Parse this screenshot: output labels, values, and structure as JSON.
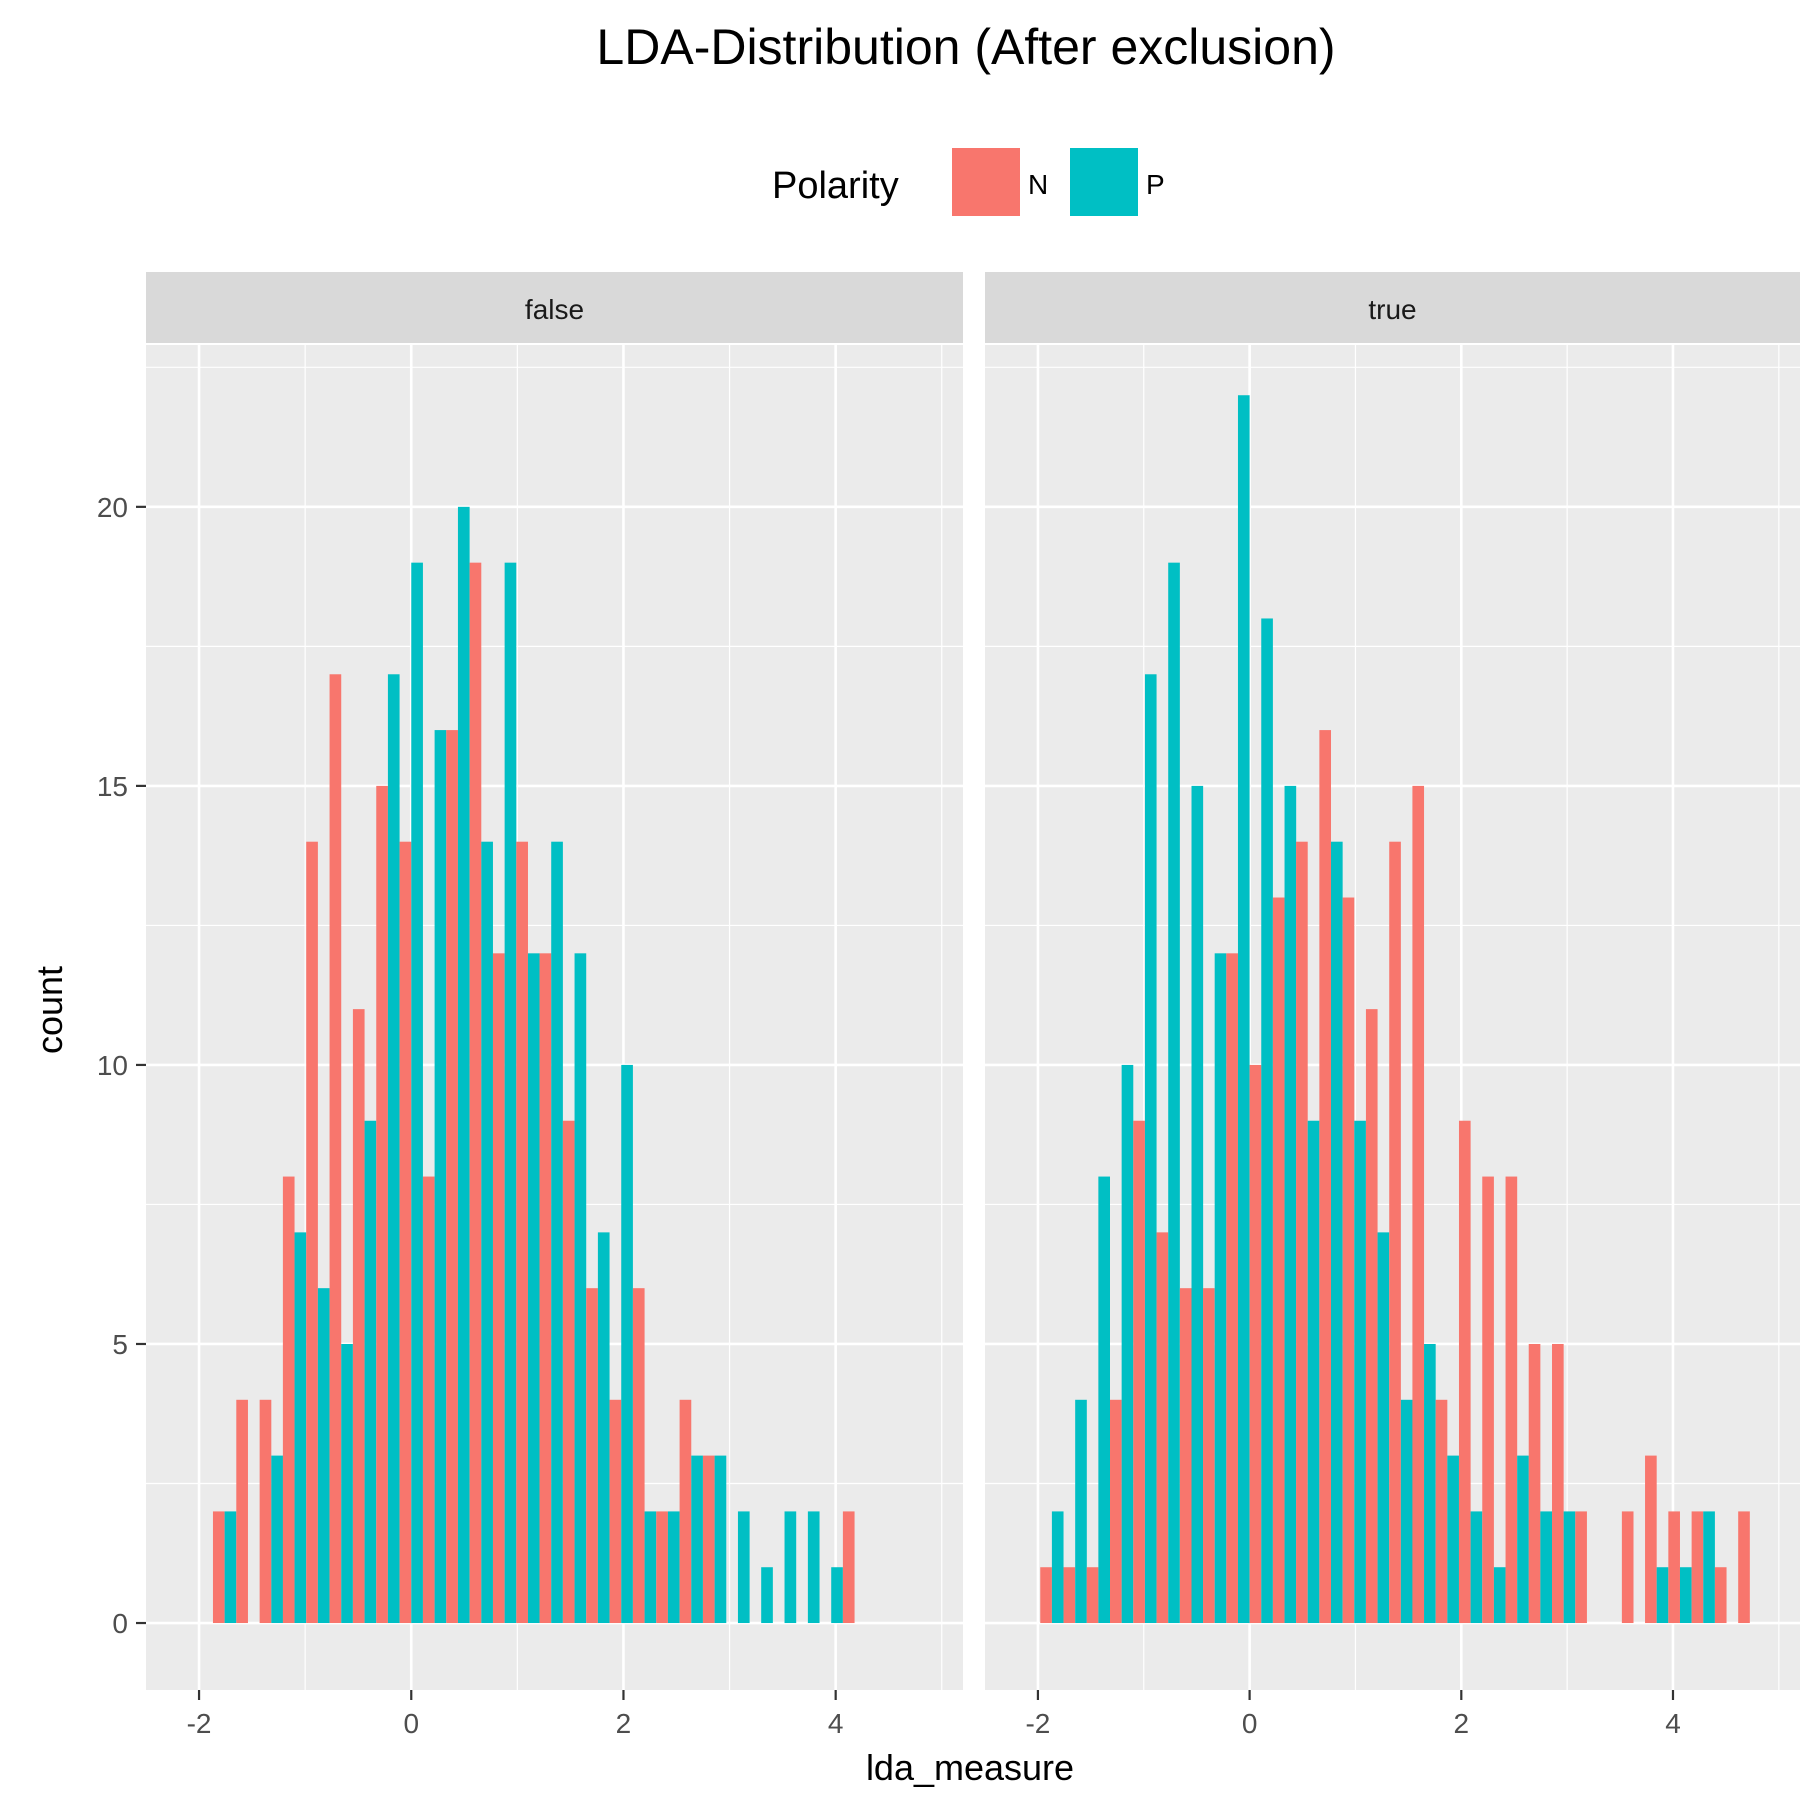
{
  "chart_data": {
    "type": "bar",
    "title": "LDA-Distribution (After exclusion)",
    "xlabel": "lda_measure",
    "ylabel": "count",
    "xlim": [
      -2.5,
      5.2
    ],
    "ylim": [
      -1.2,
      22.9
    ],
    "x_ticks": [
      -2,
      0,
      2,
      4
    ],
    "x_tick_labels": [
      "-2",
      "0",
      "2",
      "4"
    ],
    "y_ticks": [
      0,
      5,
      10,
      15,
      20
    ],
    "y_tick_labels": [
      "0",
      "5",
      "10",
      "15",
      "20"
    ],
    "grid": true,
    "legend": {
      "title": "Polarity",
      "position": "top",
      "entries": [
        {
          "label": "N",
          "color": "#F8766D"
        },
        {
          "label": "P",
          "color": "#00BFC4"
        }
      ]
    },
    "bin_width": 0.2199,
    "colors": {
      "N": "#F8766D",
      "P": "#00BFC4"
    },
    "panels": [
      {
        "label": "false",
        "bin_centers": [
          -1.759,
          -1.539,
          -1.319,
          -1.1,
          -0.88,
          -0.66,
          -0.44,
          -0.22,
          0.0,
          0.22,
          0.44,
          0.66,
          0.88,
          1.1,
          1.319,
          1.539,
          1.759,
          1.979,
          2.199,
          2.419,
          2.639,
          2.859,
          3.079,
          3.298,
          3.518,
          3.738,
          3.958,
          4.178
        ],
        "series": [
          {
            "name": "N",
            "values": [
              2,
              4,
              4,
              8,
              14,
              17,
              11,
              15,
              14,
              8,
              16,
              19,
              12,
              14,
              12,
              9,
              6,
              4,
              6,
              2,
              4,
              3,
              0,
              0,
              0,
              0,
              0,
              2
            ]
          },
          {
            "name": "P",
            "values": [
              2,
              0,
              3,
              7,
              6,
              5,
              9,
              17,
              19,
              16,
              20,
              14,
              19,
              12,
              14,
              12,
              7,
              10,
              2,
              2,
              3,
              3,
              2,
              1,
              2,
              2,
              1,
              0
            ]
          }
        ]
      },
      {
        "label": "true",
        "bin_centers": [
          -1.868,
          -1.648,
          -1.429,
          -1.209,
          -0.989,
          -0.769,
          -0.549,
          -0.33,
          -0.11,
          0.11,
          0.33,
          0.549,
          0.769,
          0.989,
          1.209,
          1.429,
          1.648,
          1.868,
          2.088,
          2.308,
          2.528,
          2.747,
          2.967,
          3.187,
          3.407,
          3.627,
          3.846,
          4.066,
          4.286,
          4.506,
          4.726
        ],
        "series": [
          {
            "name": "N",
            "values": [
              1,
              1,
              1,
              4,
              9,
              7,
              6,
              6,
              12,
              10,
              13,
              14,
              16,
              13,
              11,
              14,
              15,
              4,
              9,
              8,
              8,
              5,
              5,
              2,
              0,
              2,
              3,
              2,
              2,
              1,
              2
            ]
          },
          {
            "name": "P",
            "values": [
              2,
              4,
              8,
              10,
              17,
              19,
              15,
              12,
              22,
              18,
              15,
              9,
              14,
              9,
              7,
              4,
              5,
              3,
              2,
              1,
              3,
              2,
              2,
              0,
              0,
              0,
              1,
              1,
              2,
              0,
              0
            ]
          }
        ]
      }
    ]
  }
}
